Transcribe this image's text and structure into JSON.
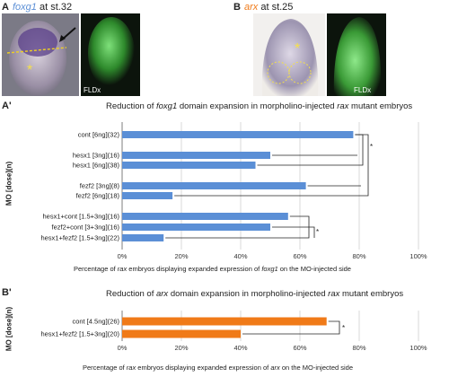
{
  "panelA": {
    "letter": "A",
    "gene": "foxg1",
    "stage": " at st.32",
    "inset_label": "FLDx"
  },
  "panelB": {
    "letter": "B",
    "gene": "arx",
    "stage": " at st.25",
    "inset_label": "FLDx"
  },
  "chart_data": [
    {
      "type": "bar",
      "panel": "A'",
      "title_pre": "Reduction of ",
      "title_gene": "foxg1",
      "title_post": " domain expansion in morpholino-injected ",
      "title_gene2": "rax",
      "title_end": " mutant embryos",
      "ylabel": "MO [dose](n)",
      "xlabel_parts": [
        "Percentage of ",
        "rax",
        " embryos displaying expanded expression of ",
        "foxg1",
        " on the MO-injected side"
      ],
      "xlim": [
        0,
        100
      ],
      "xticks": [
        "0%",
        "20%",
        "40%",
        "60%",
        "80%",
        "100%"
      ],
      "bar_color": "#5b8fd6",
      "categories": [
        "cont [6ng](32)",
        "hesx1 [3ng](16)",
        "hesx1 [6ng](38)",
        "fezf2 [3ng](8)",
        "fezf2 [6ng](18)",
        "hesx1+cont [1.5+3ng](16)",
        "fezf2+cont [3+3ng](16)",
        "hesx1+fezf2 [1.5+3ng](22)"
      ],
      "values": [
        78,
        50,
        45,
        62,
        17,
        56,
        50,
        14
      ],
      "significance": "*"
    },
    {
      "type": "bar",
      "panel": "B'",
      "title_pre": "Reduction of ",
      "title_gene": "arx",
      "title_post": " domain expansion in morpholino-injected ",
      "title_gene2": "rax",
      "title_end": " mutant embryos",
      "ylabel": "MO [dose](n)",
      "xlabel_parts": [
        "Percentage of ",
        "rax",
        " embryos displaying expanded expression of ",
        "arx",
        " on the MO-injected side"
      ],
      "xlim": [
        0,
        100
      ],
      "xticks": [
        "0%",
        "20%",
        "40%",
        "60%",
        "80%",
        "100%"
      ],
      "bar_color": "#f07a18",
      "categories": [
        "cont [4.5ng](26)",
        "hesx1+fezf2 [1.5+3ng](20)"
      ],
      "values": [
        69,
        40
      ],
      "significance": "*"
    }
  ]
}
